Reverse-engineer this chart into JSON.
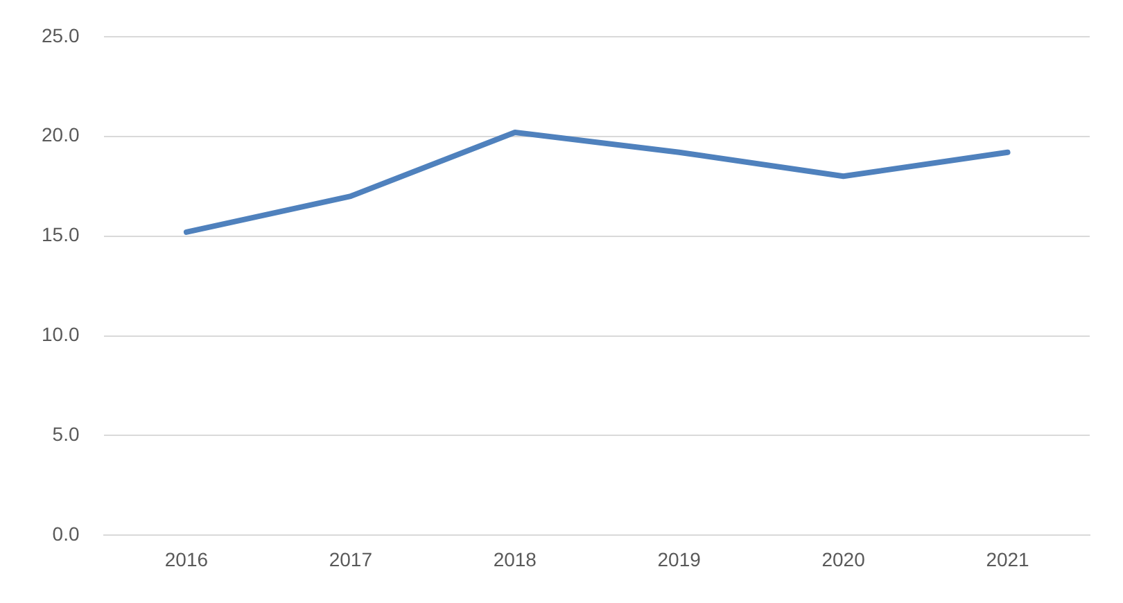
{
  "chart_data": {
    "type": "line",
    "categories": [
      "2016",
      "2017",
      "2018",
      "2019",
      "2020",
      "2021"
    ],
    "series": [
      {
        "color": "#4f81bd",
        "values": [
          15.2,
          17.0,
          20.2,
          19.2,
          18.0,
          19.2
        ]
      }
    ],
    "ylim": [
      0,
      25
    ],
    "yticks": [
      {
        "value": 0,
        "label": "0.0"
      },
      {
        "value": 5,
        "label": "5.0"
      },
      {
        "value": 10,
        "label": "10.0"
      },
      {
        "value": 15,
        "label": "15.0"
      },
      {
        "value": 20,
        "label": "20.0"
      },
      {
        "value": 25,
        "label": "25.0"
      }
    ],
    "grid": "y",
    "marker": "none",
    "line_style": "solid"
  }
}
